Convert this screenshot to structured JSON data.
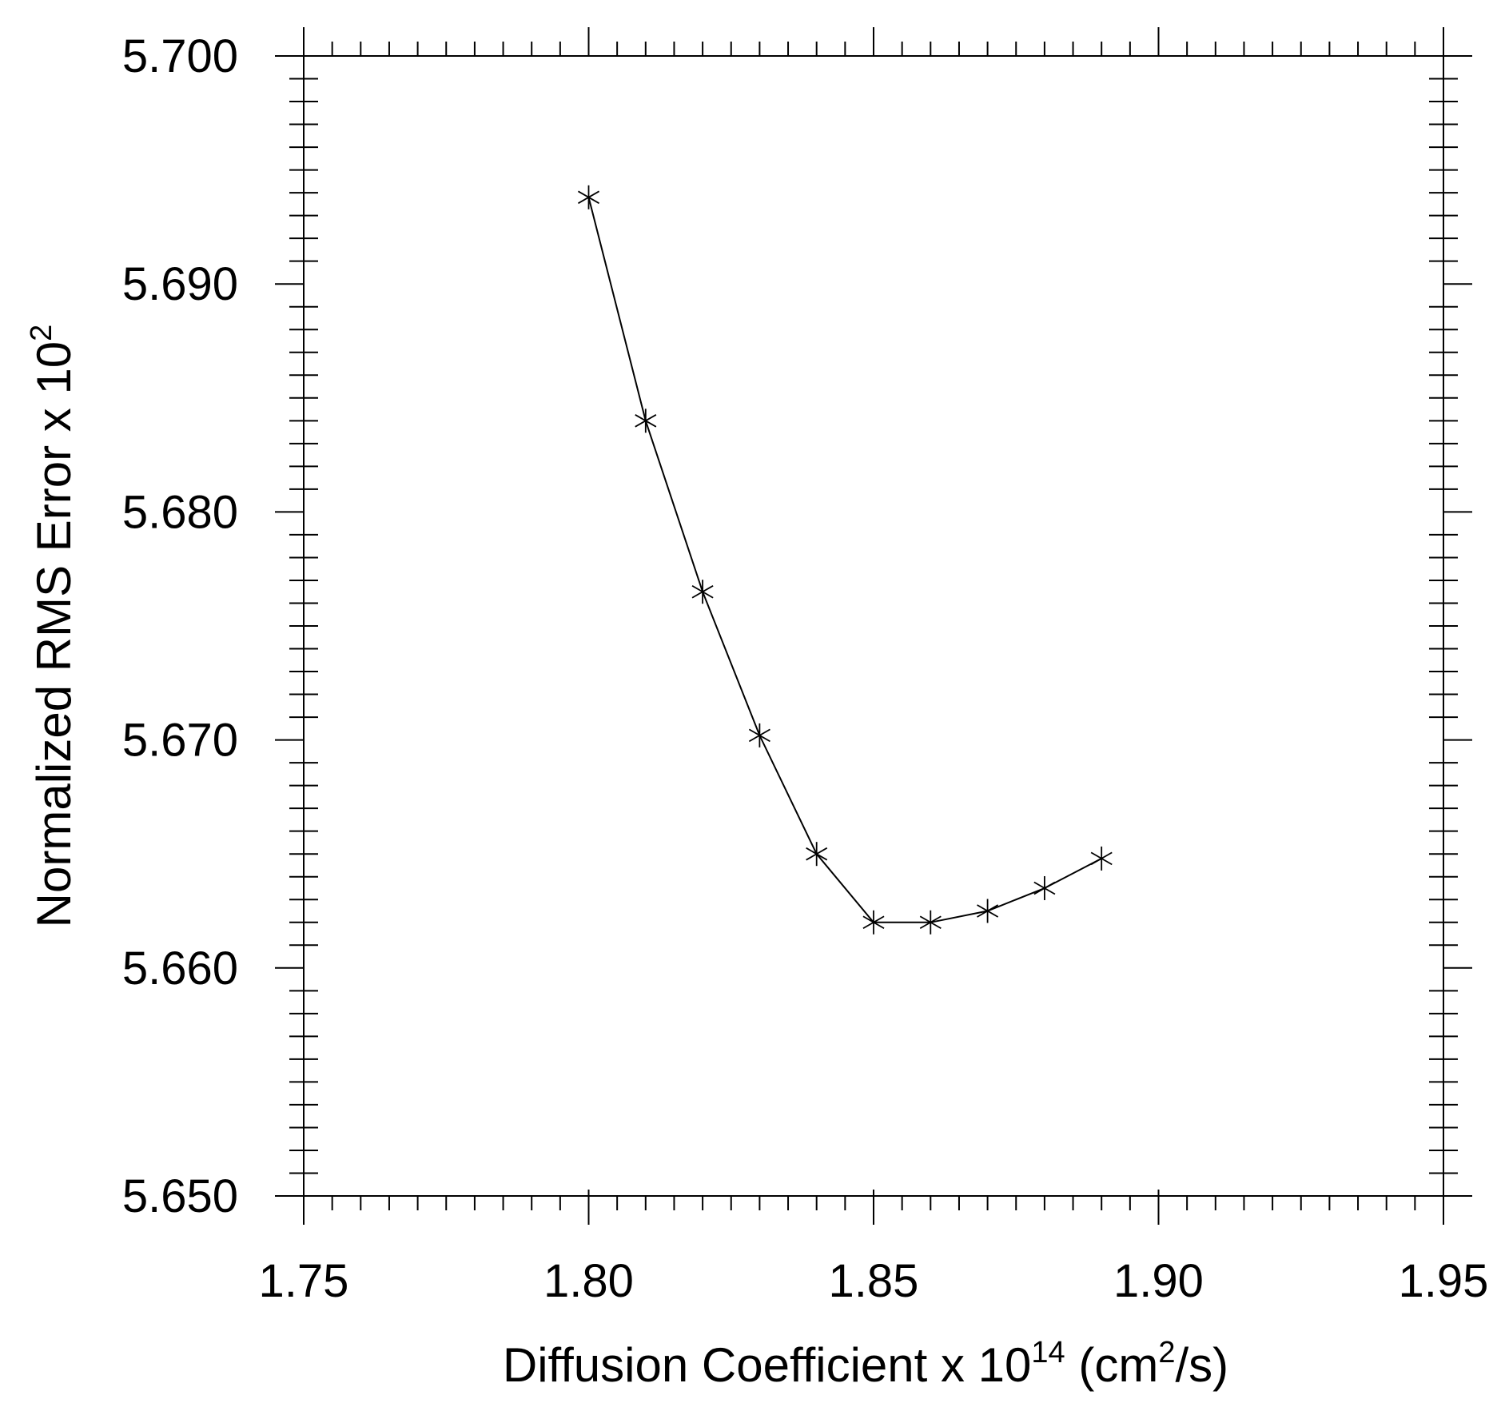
{
  "chart_data": {
    "type": "line",
    "title": "",
    "xlabel": {
      "text": "Diffusion Coefficient  x  10",
      "exponent": "14",
      "unit_open": " (cm",
      "unit_exponent": "2",
      "unit_close": "/s)"
    },
    "ylabel": {
      "text": "Normalized RMS Error  x  10",
      "exponent": "2"
    },
    "xlim": [
      1.75,
      1.95
    ],
    "ylim": [
      5.65,
      5.7
    ],
    "x_ticks": [
      "1.75",
      "1.80",
      "1.85",
      "1.90",
      "1.95"
    ],
    "y_ticks": [
      "5.650",
      "5.660",
      "5.670",
      "5.680",
      "5.690",
      "5.700"
    ],
    "x_minor_step": 0.005,
    "y_minor_step": 0.001,
    "grid": false,
    "marker": "asterisk",
    "line_color": "#000000",
    "series": [
      {
        "x": [
          1.8,
          1.81,
          1.82,
          1.83,
          1.84,
          1.85,
          1.86,
          1.87,
          1.88,
          1.89
        ],
        "y": [
          5.6938,
          5.684,
          5.6765,
          5.6702,
          5.665,
          5.662,
          5.662,
          5.6625,
          5.6635,
          5.6648
        ]
      }
    ]
  }
}
